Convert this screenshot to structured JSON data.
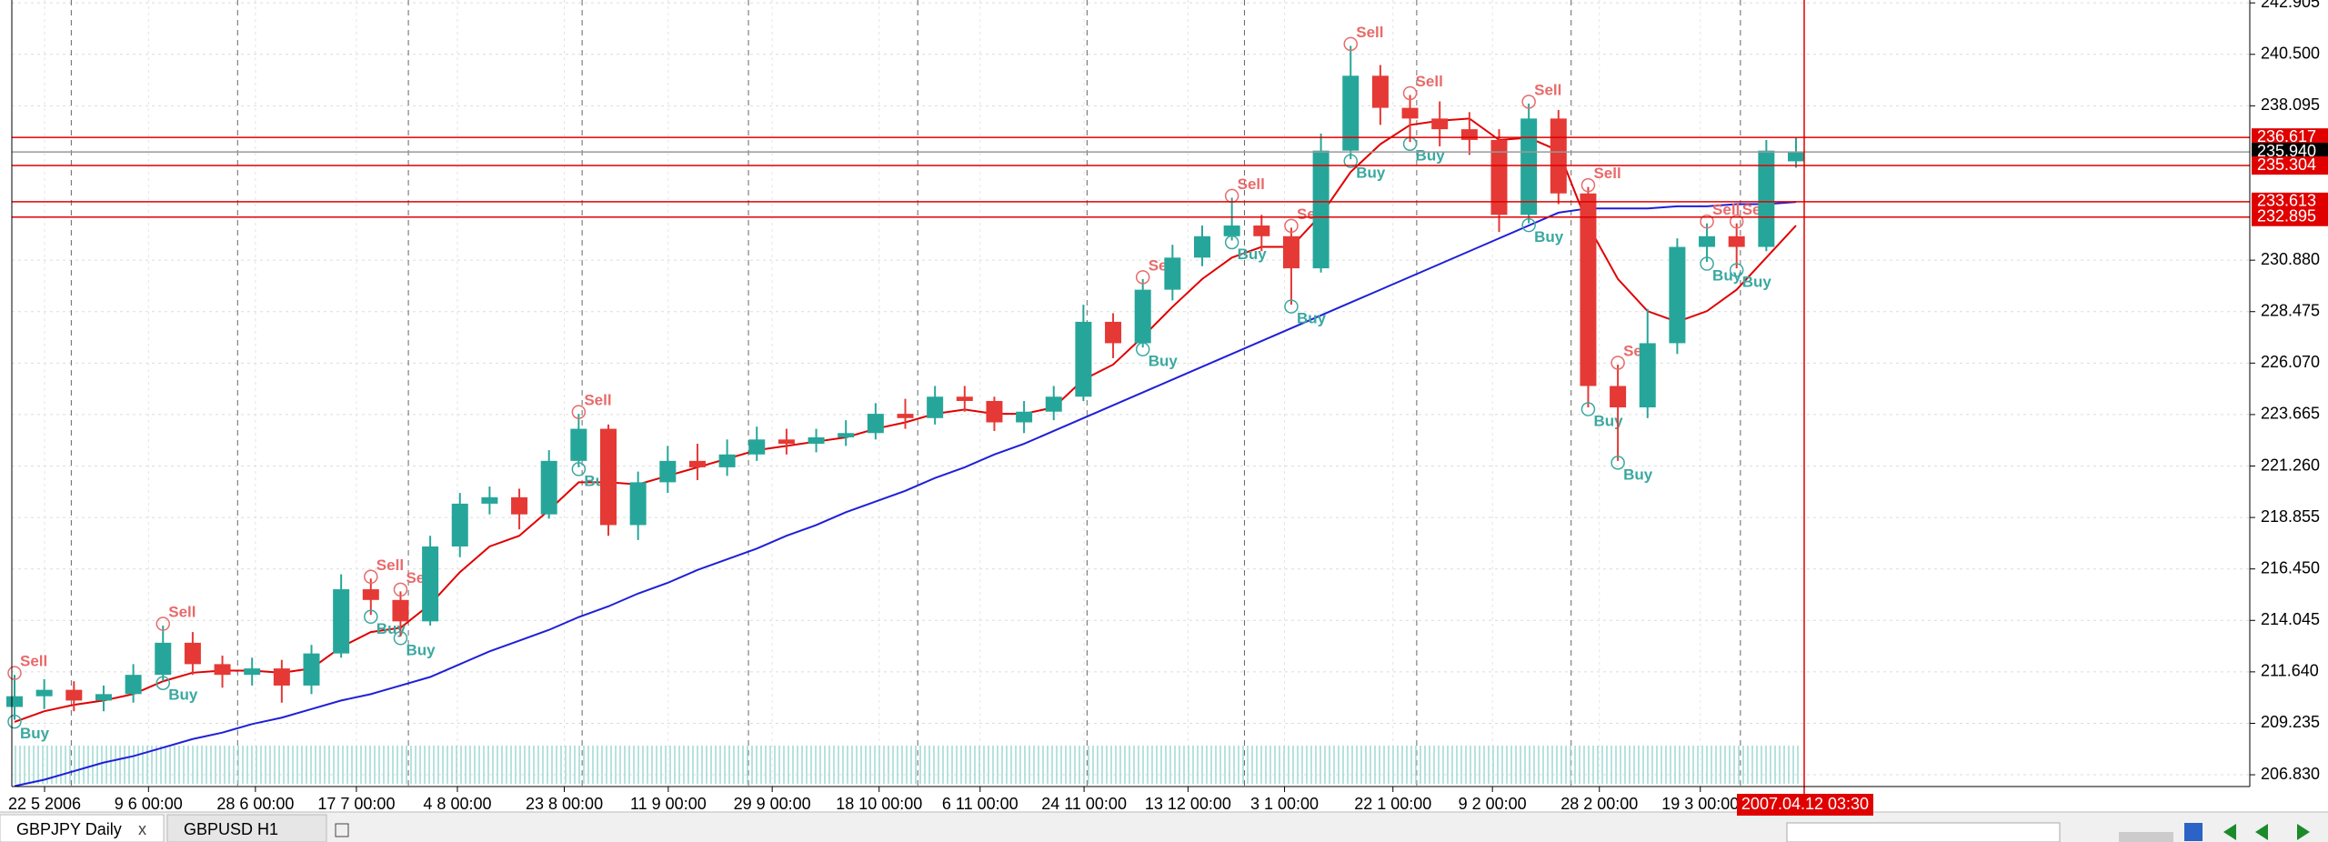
{
  "chart_data": {
    "type": "candlestick",
    "ylim": [
      206.28,
      243.04
    ],
    "yticks": [
      {
        "value": 242.905,
        "label": "242.905"
      },
      {
        "value": 240.5,
        "label": "240.500"
      },
      {
        "value": 238.095,
        "label": "238.095"
      },
      {
        "value": 230.88,
        "label": "230.880"
      },
      {
        "value": 228.475,
        "label": "228.475"
      },
      {
        "value": 226.07,
        "label": "226.070"
      },
      {
        "value": 223.665,
        "label": "223.665"
      },
      {
        "value": 221.26,
        "label": "221.260"
      },
      {
        "value": 218.855,
        "label": "218.855"
      },
      {
        "value": 216.45,
        "label": "216.450"
      },
      {
        "value": 214.045,
        "label": "214.045"
      },
      {
        "value": 211.64,
        "label": "211.640"
      },
      {
        "value": 209.235,
        "label": "209.235"
      },
      {
        "value": 206.83,
        "label": "206.830"
      }
    ],
    "levels": [
      {
        "value": 236.617,
        "label": "236.617",
        "color": "#e00000"
      },
      {
        "value": 235.94,
        "label": "235.940",
        "color": "#000000"
      },
      {
        "value": 235.304,
        "label": "235.304",
        "color": "#e00000"
      },
      {
        "value": 233.613,
        "label": "233.613",
        "color": "#e00000"
      },
      {
        "value": 232.895,
        "label": "232.895",
        "color": "#e00000"
      }
    ],
    "x_labels": [
      "22 5 2006",
      "9 6 00:00",
      "28 6 00:00",
      "17 7 00:00",
      "4 8 00:00",
      "23 8 00:00",
      "11 9 00:00",
      "29 9 00:00",
      "18 10 00:00",
      "6 11 00:00",
      "24 11 00:00",
      "13 12 00:00",
      "3 1 00:00",
      "22 1 00:00",
      "9 2 00:00",
      "28 2 00:00",
      "19 3 00:00"
    ],
    "cursor_time": "2007.04.12 03:30",
    "up_color": "#26a69a",
    "down_color": "#e53935",
    "buy_color": "#3aa8a0",
    "sell_color": "#e86a6a",
    "candles": [
      {
        "o": 210.0,
        "h": 211.5,
        "l": 209.4,
        "c": 210.5,
        "signals": [
          "Sell",
          "Buy"
        ]
      },
      {
        "o": 210.5,
        "h": 211.3,
        "l": 209.9,
        "c": 210.8
      },
      {
        "o": 210.8,
        "h": 211.2,
        "l": 209.8,
        "c": 210.3
      },
      {
        "o": 210.3,
        "h": 211.0,
        "l": 209.8,
        "c": 210.6
      },
      {
        "o": 210.6,
        "h": 212.0,
        "l": 210.2,
        "c": 211.5
      },
      {
        "o": 211.5,
        "h": 213.8,
        "l": 211.2,
        "c": 213.0,
        "signals": [
          "Sell",
          "Buy"
        ]
      },
      {
        "o": 213.0,
        "h": 213.5,
        "l": 211.5,
        "c": 212.0
      },
      {
        "o": 212.0,
        "h": 212.4,
        "l": 210.9,
        "c": 211.5
      },
      {
        "o": 211.5,
        "h": 212.3,
        "l": 211.0,
        "c": 211.8
      },
      {
        "o": 211.8,
        "h": 212.2,
        "l": 210.2,
        "c": 211.0
      },
      {
        "o": 211.0,
        "h": 212.9,
        "l": 210.6,
        "c": 212.5
      },
      {
        "o": 212.5,
        "h": 216.2,
        "l": 212.3,
        "c": 215.5
      },
      {
        "o": 215.5,
        "h": 216.0,
        "l": 214.3,
        "c": 215.0,
        "signals": [
          "Sell",
          "Buy"
        ]
      },
      {
        "o": 215.0,
        "h": 215.4,
        "l": 213.3,
        "c": 214.0,
        "signals": [
          "Sell",
          "Buy"
        ]
      },
      {
        "o": 214.0,
        "h": 218.0,
        "l": 213.8,
        "c": 217.5
      },
      {
        "o": 217.5,
        "h": 220.0,
        "l": 217.0,
        "c": 219.5
      },
      {
        "o": 219.5,
        "h": 220.3,
        "l": 219.0,
        "c": 219.8
      },
      {
        "o": 219.8,
        "h": 220.2,
        "l": 218.3,
        "c": 219.0
      },
      {
        "o": 219.0,
        "h": 222.0,
        "l": 218.8,
        "c": 221.5
      },
      {
        "o": 221.5,
        "h": 223.7,
        "l": 221.2,
        "c": 223.0,
        "signals": [
          "Sell",
          "Buy"
        ]
      },
      {
        "o": 223.0,
        "h": 223.2,
        "l": 218.0,
        "c": 218.5
      },
      {
        "o": 218.5,
        "h": 221.0,
        "l": 217.8,
        "c": 220.5
      },
      {
        "o": 220.5,
        "h": 222.2,
        "l": 220.0,
        "c": 221.5
      },
      {
        "o": 221.5,
        "h": 222.3,
        "l": 220.6,
        "c": 221.2
      },
      {
        "o": 221.2,
        "h": 222.5,
        "l": 220.8,
        "c": 221.8
      },
      {
        "o": 221.8,
        "h": 223.1,
        "l": 221.5,
        "c": 222.5
      },
      {
        "o": 222.5,
        "h": 223.0,
        "l": 221.8,
        "c": 222.3
      },
      {
        "o": 222.3,
        "h": 223.0,
        "l": 221.9,
        "c": 222.6
      },
      {
        "o": 222.6,
        "h": 223.4,
        "l": 222.2,
        "c": 222.8
      },
      {
        "o": 222.8,
        "h": 224.2,
        "l": 222.5,
        "c": 223.7
      },
      {
        "o": 223.7,
        "h": 224.4,
        "l": 223.0,
        "c": 223.5
      },
      {
        "o": 223.5,
        "h": 225.0,
        "l": 223.2,
        "c": 224.5
      },
      {
        "o": 224.5,
        "h": 225.0,
        "l": 223.8,
        "c": 224.3
      },
      {
        "o": 224.3,
        "h": 224.5,
        "l": 222.9,
        "c": 223.3
      },
      {
        "o": 223.3,
        "h": 224.3,
        "l": 222.8,
        "c": 223.8
      },
      {
        "o": 223.8,
        "h": 225.0,
        "l": 223.4,
        "c": 224.5
      },
      {
        "o": 224.5,
        "h": 228.8,
        "l": 224.3,
        "c": 228.0
      },
      {
        "o": 228.0,
        "h": 228.4,
        "l": 226.3,
        "c": 227.0
      },
      {
        "o": 227.0,
        "h": 230.0,
        "l": 226.8,
        "c": 229.5,
        "signals": [
          "Sell",
          "Buy"
        ]
      },
      {
        "o": 229.5,
        "h": 231.6,
        "l": 229.0,
        "c": 231.0
      },
      {
        "o": 231.0,
        "h": 232.5,
        "l": 230.6,
        "c": 232.0
      },
      {
        "o": 232.0,
        "h": 233.8,
        "l": 231.8,
        "c": 232.5,
        "signals": [
          "Sell",
          "Buy"
        ]
      },
      {
        "o": 232.5,
        "h": 233.0,
        "l": 231.3,
        "c": 232.0
      },
      {
        "o": 232.0,
        "h": 232.4,
        "l": 228.8,
        "c": 230.5,
        "signals": [
          "Sell",
          "Buy"
        ]
      },
      {
        "o": 230.5,
        "h": 236.8,
        "l": 230.3,
        "c": 236.0
      },
      {
        "o": 236.0,
        "h": 240.9,
        "l": 235.6,
        "c": 239.5,
        "signals": [
          "Sell",
          "Buy"
        ]
      },
      {
        "o": 239.5,
        "h": 240.0,
        "l": 237.2,
        "c": 238.0
      },
      {
        "o": 238.0,
        "h": 238.6,
        "l": 236.4,
        "c": 237.5,
        "signals": [
          "Sell",
          "Buy"
        ]
      },
      {
        "o": 237.5,
        "h": 238.3,
        "l": 236.2,
        "c": 237.0
      },
      {
        "o": 237.0,
        "h": 237.8,
        "l": 235.8,
        "c": 236.5
      },
      {
        "o": 236.5,
        "h": 237.0,
        "l": 232.2,
        "c": 233.0
      },
      {
        "o": 233.0,
        "h": 238.2,
        "l": 232.6,
        "c": 237.5,
        "signals": [
          "Sell",
          "Buy"
        ]
      },
      {
        "o": 237.5,
        "h": 237.9,
        "l": 233.5,
        "c": 234.0
      },
      {
        "o": 234.0,
        "h": 234.3,
        "l": 224.0,
        "c": 225.0,
        "signals": [
          "Sell",
          "Buy"
        ]
      },
      {
        "o": 225.0,
        "h": 226.0,
        "l": 221.5,
        "c": 224.0,
        "signals": [
          "Sell",
          "Buy"
        ]
      },
      {
        "o": 224.0,
        "h": 228.6,
        "l": 223.5,
        "c": 227.0
      },
      {
        "o": 227.0,
        "h": 231.9,
        "l": 226.5,
        "c": 231.5
      },
      {
        "o": 231.5,
        "h": 232.6,
        "l": 230.8,
        "c": 232.0,
        "signals": [
          "Sell",
          "Buy"
        ]
      },
      {
        "o": 232.0,
        "h": 232.6,
        "l": 230.5,
        "c": 231.5,
        "signals": [
          "Sell",
          "Buy"
        ]
      },
      {
        "o": 231.5,
        "h": 236.5,
        "l": 231.3,
        "c": 236.0
      },
      {
        "o": 235.5,
        "h": 236.6,
        "l": 235.2,
        "c": 235.94
      }
    ],
    "series": [
      {
        "color": "#e00000",
        "values": [
          209.3,
          209.8,
          210.1,
          210.3,
          210.6,
          211.2,
          211.6,
          211.7,
          211.7,
          211.6,
          211.8,
          212.8,
          213.5,
          213.7,
          214.8,
          216.3,
          217.5,
          218.0,
          219.2,
          220.5,
          220.5,
          220.4,
          220.8,
          221.2,
          221.6,
          222.0,
          222.2,
          222.4,
          222.6,
          223.0,
          223.3,
          223.7,
          223.9,
          223.7,
          223.7,
          224.0,
          225.3,
          226.0,
          227.3,
          228.7,
          230.0,
          231.0,
          231.5,
          231.5,
          233.0,
          235.0,
          236.3,
          237.2,
          237.4,
          237.5,
          236.5,
          236.6,
          236.0,
          232.5,
          230.0,
          228.5,
          228.0,
          228.5,
          229.5,
          231.0,
          232.5
        ]
      },
      {
        "color": "#1f1fd8",
        "values": [
          206.3,
          206.6,
          207.0,
          207.4,
          207.7,
          208.1,
          208.5,
          208.8,
          209.2,
          209.5,
          209.9,
          210.3,
          210.6,
          211.0,
          211.4,
          212.0,
          212.6,
          213.1,
          213.6,
          214.2,
          214.7,
          215.3,
          215.8,
          216.4,
          216.9,
          217.4,
          218.0,
          218.5,
          219.1,
          219.6,
          220.1,
          220.7,
          221.2,
          221.8,
          222.3,
          222.9,
          223.5,
          224.1,
          224.7,
          225.3,
          225.9,
          226.5,
          227.1,
          227.7,
          228.3,
          228.9,
          229.5,
          230.1,
          230.7,
          231.3,
          231.9,
          232.5,
          233.1,
          233.3,
          233.3,
          233.3,
          233.4,
          233.4,
          233.5,
          233.5,
          233.6
        ]
      }
    ]
  },
  "tabs": [
    {
      "label": "GBPJPY Daily",
      "close": "x"
    },
    {
      "label": "GBPUSD H1"
    }
  ]
}
